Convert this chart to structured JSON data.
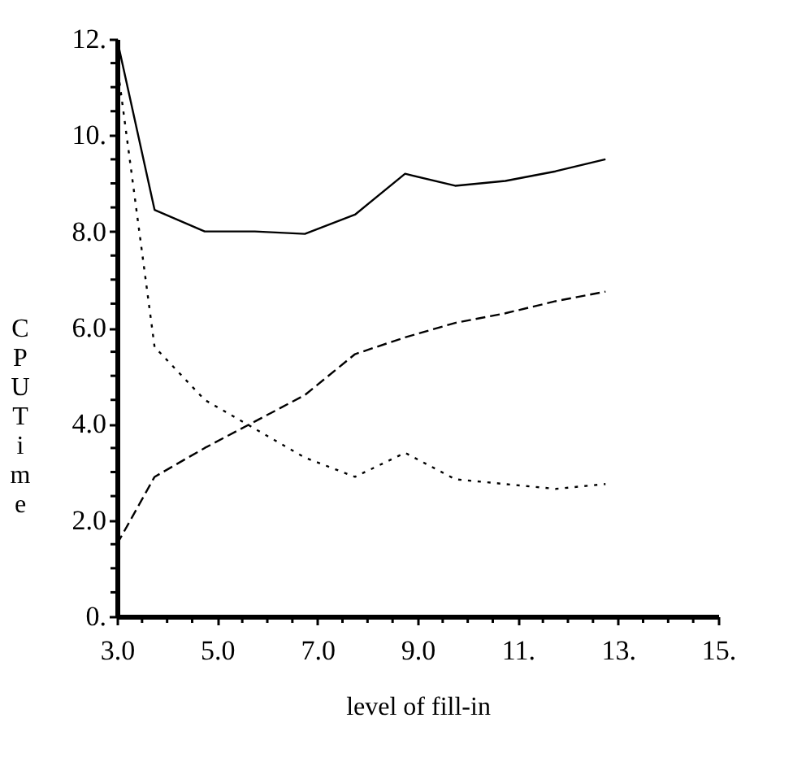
{
  "chart_data": {
    "type": "line",
    "xlabel": "level of fill-in",
    "ylabel": "CPU Time",
    "x": [
      3,
      3.75,
      4.75,
      5.75,
      6.75,
      7.75,
      8.75,
      9.75,
      10.75,
      11.75,
      12.75
    ],
    "series": [
      {
        "color": "#000000",
        "line_style": "solid",
        "values": [
          12.0,
          8.45,
          8.0,
          8.0,
          7.95,
          8.35,
          9.2,
          8.95,
          9.05,
          9.25,
          9.5
        ]
      },
      {
        "color": "#000000",
        "line_style": "dotted",
        "values": [
          11.5,
          5.6,
          4.5,
          3.9,
          3.3,
          2.9,
          3.4,
          2.85,
          2.75,
          2.65,
          2.75
        ]
      },
      {
        "color": "#000000",
        "line_style": "dashed",
        "values": [
          1.5,
          2.9,
          3.5,
          4.05,
          4.6,
          5.45,
          5.8,
          6.1,
          6.3,
          6.55,
          6.75
        ]
      }
    ],
    "xlim": [
      3,
      15
    ],
    "ylim": [
      0,
      12
    ],
    "xticks": [
      {
        "value": 3,
        "label": "3.0"
      },
      {
        "value": 3.5,
        "label": null
      },
      {
        "value": 4,
        "label": null
      },
      {
        "value": 4.5,
        "label": null
      },
      {
        "value": 5,
        "label": "5.0"
      },
      {
        "value": 5.5,
        "label": null
      },
      {
        "value": 6,
        "label": null
      },
      {
        "value": 6.5,
        "label": null
      },
      {
        "value": 7,
        "label": "7.0"
      },
      {
        "value": 7.5,
        "label": null
      },
      {
        "value": 8,
        "label": null
      },
      {
        "value": 8.5,
        "label": null
      },
      {
        "value": 9,
        "label": "9.0"
      },
      {
        "value": 9.5,
        "label": null
      },
      {
        "value": 10,
        "label": null
      },
      {
        "value": 10.5,
        "label": null
      },
      {
        "value": 11,
        "label": "11."
      },
      {
        "value": 11.5,
        "label": null
      },
      {
        "value": 12,
        "label": null
      },
      {
        "value": 12.5,
        "label": null
      },
      {
        "value": 13,
        "label": "13."
      },
      {
        "value": 13.5,
        "label": null
      },
      {
        "value": 14,
        "label": null
      },
      {
        "value": 14.5,
        "label": null
      },
      {
        "value": 15,
        "label": "15."
      }
    ],
    "yticks": [
      {
        "value": 0,
        "label": "0."
      },
      {
        "value": 0.5,
        "label": null
      },
      {
        "value": 1,
        "label": null
      },
      {
        "value": 1.5,
        "label": null
      },
      {
        "value": 2,
        "label": "2.0"
      },
      {
        "value": 2.5,
        "label": null
      },
      {
        "value": 3,
        "label": null
      },
      {
        "value": 3.5,
        "label": null
      },
      {
        "value": 4,
        "label": "4.0"
      },
      {
        "value": 4.5,
        "label": null
      },
      {
        "value": 5,
        "label": null
      },
      {
        "value": 5.5,
        "label": null
      },
      {
        "value": 6,
        "label": "6.0"
      },
      {
        "value": 6.5,
        "label": null
      },
      {
        "value": 7,
        "label": null
      },
      {
        "value": 7.5,
        "label": null
      },
      {
        "value": 8,
        "label": "8.0"
      },
      {
        "value": 8.5,
        "label": null
      },
      {
        "value": 9,
        "label": null
      },
      {
        "value": 9.5,
        "label": null
      },
      {
        "value": 10,
        "label": "10."
      },
      {
        "value": 10.5,
        "label": null
      },
      {
        "value": 11,
        "label": null
      },
      {
        "value": 11.5,
        "label": null
      },
      {
        "value": 12,
        "label": "12."
      }
    ],
    "grid": false
  }
}
